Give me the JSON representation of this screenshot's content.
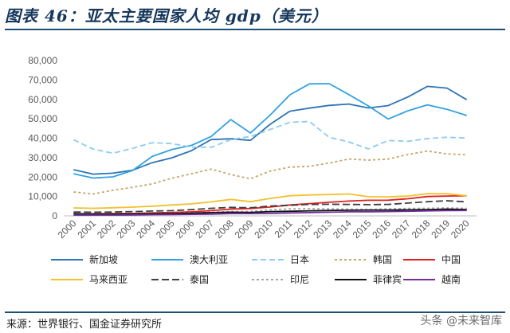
{
  "title": "图表 46：亚太主要国家人均 gdp（美元）",
  "source": "来源：世界银行、国金证券研究所",
  "watermark": "头条 @未来智库",
  "chart_data": {
    "type": "line",
    "x": [
      "2000",
      "2001",
      "2002",
      "2003",
      "2004",
      "2005",
      "2006",
      "2007",
      "2008",
      "2009",
      "2010",
      "2011",
      "2012",
      "2013",
      "2014",
      "2015",
      "2016",
      "2017",
      "2018",
      "2019",
      "2020"
    ],
    "ylim": [
      0,
      80000
    ],
    "yticks": [
      0,
      10000,
      20000,
      30000,
      40000,
      50000,
      60000,
      70000,
      80000
    ],
    "ytick_labels": [
      "0",
      "10,000",
      "20,000",
      "30,000",
      "40,000",
      "50,000",
      "60,000",
      "70,000",
      "80,000"
    ],
    "grid": false,
    "legend_position": "bottom",
    "series": [
      {
        "name": "新加坡",
        "color": "#2e75b6",
        "dash": "",
        "values": [
          23800,
          21500,
          22000,
          23500,
          27400,
          29900,
          33600,
          39300,
          39700,
          38900,
          47200,
          53900,
          55500,
          56900,
          57600,
          55600,
          56800,
          61200,
          66700,
          65800,
          59800
        ]
      },
      {
        "name": "澳大利亚",
        "color": "#32a2df",
        "dash": "",
        "values": [
          21700,
          19500,
          20100,
          23400,
          30600,
          34200,
          36300,
          40900,
          49600,
          42700,
          51900,
          62300,
          68000,
          68100,
          62500,
          56600,
          49900,
          54100,
          57200,
          54900,
          51700
        ]
      },
      {
        "name": "日本",
        "color": "#8ecbf0",
        "dash": "7,4",
        "values": [
          39200,
          34400,
          32300,
          34800,
          37700,
          37200,
          35400,
          35300,
          39300,
          40900,
          44500,
          48200,
          48600,
          40500,
          38100,
          34500,
          38800,
          38400,
          39800,
          40500,
          40100
        ]
      },
      {
        "name": "韩国",
        "color": "#c9a56a",
        "dash": "3,3",
        "values": [
          12300,
          11300,
          13200,
          14700,
          16500,
          19400,
          21700,
          24100,
          21300,
          19100,
          23100,
          25100,
          25500,
          27200,
          29300,
          28700,
          29300,
          31600,
          33400,
          31900,
          31500
        ]
      },
      {
        "name": "中国",
        "color": "#e02020",
        "dash": "",
        "values": [
          960,
          1050,
          1150,
          1290,
          1510,
          1760,
          2100,
          2700,
          3470,
          3830,
          4550,
          5620,
          6300,
          7020,
          7640,
          8030,
          8080,
          8820,
          9980,
          10200,
          10400
        ]
      },
      {
        "name": "马来西亚",
        "color": "#f2c12e",
        "dash": "",
        "values": [
          4100,
          3900,
          4200,
          4500,
          5000,
          5600,
          6200,
          7200,
          8500,
          7300,
          9000,
          10400,
          10800,
          11000,
          11300,
          9900,
          9800,
          10200,
          11400,
          11400,
          10400
        ]
      },
      {
        "name": "泰国",
        "color": "#404040",
        "dash": "9,4",
        "values": [
          2000,
          1900,
          2000,
          2200,
          2500,
          2700,
          3200,
          3900,
          4400,
          4200,
          5100,
          5500,
          5900,
          6000,
          5900,
          5800,
          5900,
          6600,
          7300,
          7800,
          7200
        ]
      },
      {
        "name": "印尼",
        "color": "#a6a6a6",
        "dash": "3,3",
        "values": [
          800,
          800,
          900,
          1100,
          1200,
          1300,
          1600,
          1900,
          2200,
          2300,
          3100,
          3600,
          3700,
          3600,
          3500,
          3300,
          3600,
          3800,
          3900,
          4100,
          3900
        ]
      },
      {
        "name": "菲律宾",
        "color": "#111111",
        "dash": "",
        "values": [
          1100,
          1000,
          1000,
          1000,
          1100,
          1200,
          1400,
          1700,
          1900,
          1800,
          2200,
          2400,
          2600,
          2800,
          2900,
          3000,
          3000,
          3100,
          3200,
          3500,
          3300
        ]
      },
      {
        "name": "越南",
        "color": "#7030a0",
        "dash": "",
        "values": [
          400,
          400,
          400,
          500,
          600,
          700,
          800,
          900,
          1200,
          1200,
          1300,
          1500,
          1700,
          1900,
          2100,
          2100,
          2200,
          2400,
          2600,
          2700,
          2800
        ]
      }
    ]
  }
}
